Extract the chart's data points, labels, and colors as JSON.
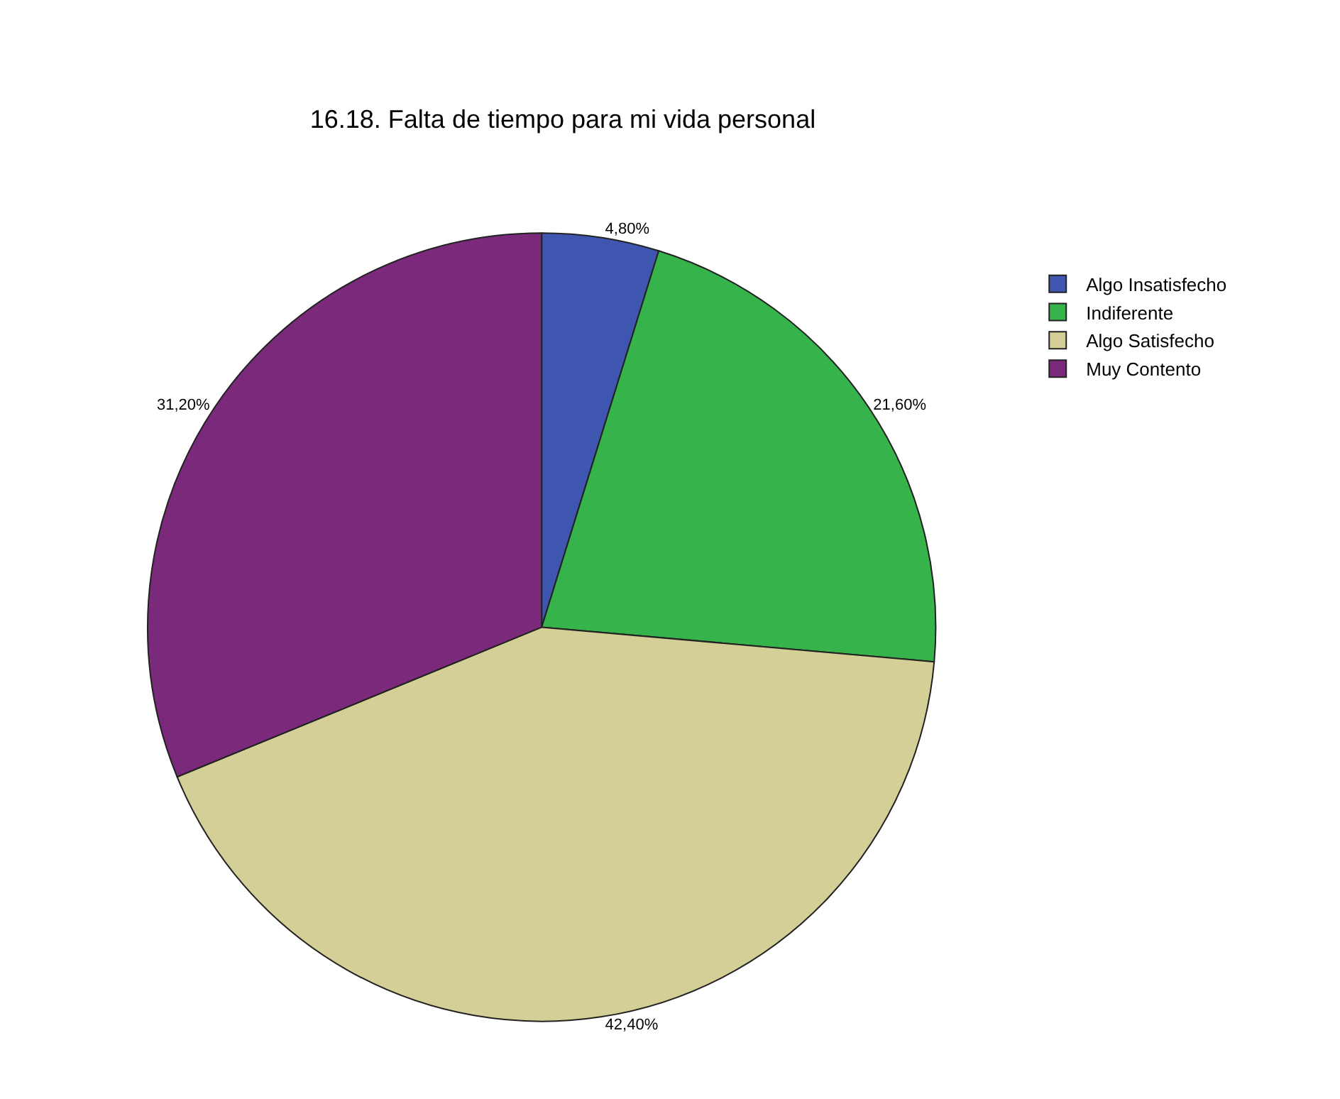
{
  "chart_data": {
    "type": "pie",
    "title": "16.18. Falta de tiempo para mi vida personal",
    "categories": [
      "Algo Insatisfecho",
      "Indiferente",
      "Algo Satisfecho",
      "Muy Contento"
    ],
    "values": [
      4.8,
      21.6,
      42.4,
      31.2
    ],
    "colors": [
      "#3f56b0",
      "#36b34a",
      "#d4cf96",
      "#7b2a7b"
    ],
    "value_labels": [
      "4,80%",
      "21,60%",
      "42,40%",
      "31,20%"
    ],
    "legend": "top right"
  }
}
